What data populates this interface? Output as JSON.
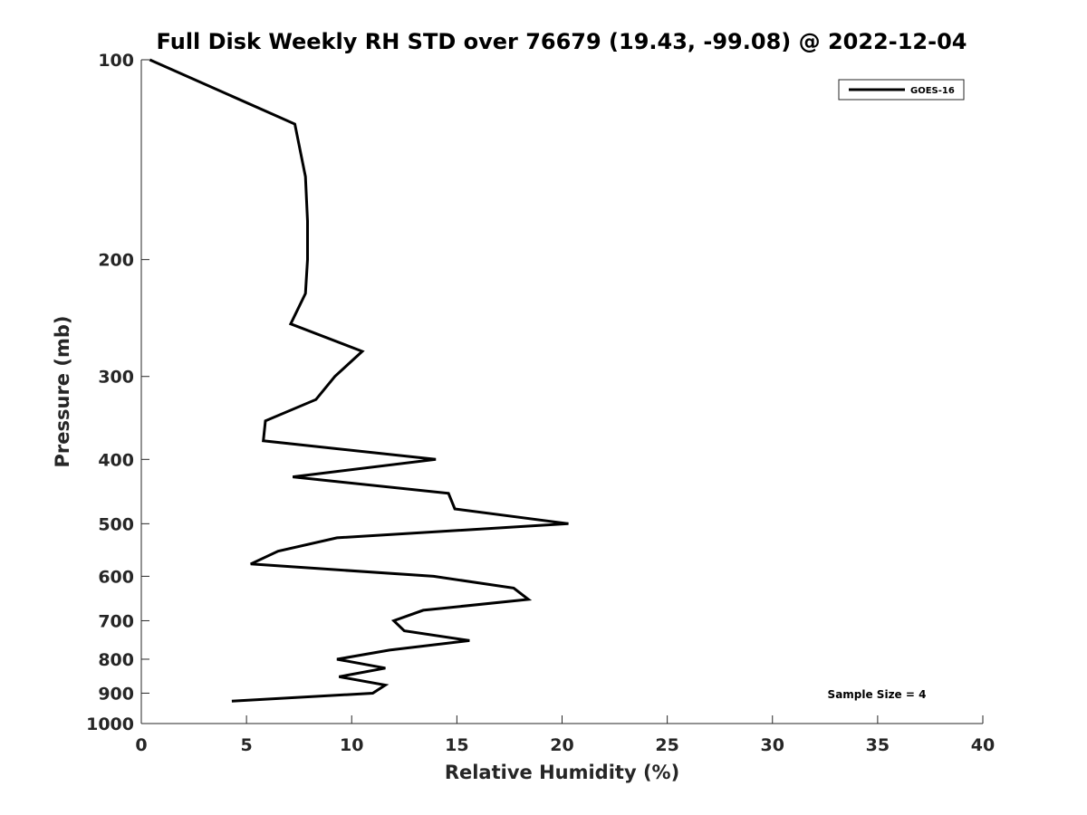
{
  "chart_data": {
    "type": "line",
    "title": "Full Disk Weekly RH STD over 76679 (19.43, -99.08) @ 2022-12-04",
    "xlabel": "Relative Humidity (%)",
    "ylabel": "Pressure (mb)",
    "xlim": [
      0,
      40
    ],
    "ylim": [
      1000,
      100
    ],
    "yscale": "log-reversed",
    "x_ticks": [
      0,
      5,
      10,
      15,
      20,
      25,
      30,
      35,
      40
    ],
    "x_tick_labels": [
      "0",
      "5",
      "10",
      "15",
      "20",
      "25",
      "30",
      "35",
      "40"
    ],
    "y_ticks": [
      100,
      200,
      300,
      400,
      500,
      600,
      700,
      800,
      900,
      1000
    ],
    "y_tick_labels": [
      "100",
      "200",
      "300",
      "400",
      "500",
      "600",
      "700",
      "800",
      "900",
      "1000"
    ],
    "grid": false,
    "legend_position": "top-right",
    "annotation": "Sample Size = 4",
    "series": [
      {
        "name": "GOES-16",
        "color": "#000000",
        "points": [
          {
            "p": 100,
            "rh": 0.4
          },
          {
            "p": 125,
            "rh": 7.3
          },
          {
            "p": 150,
            "rh": 7.8
          },
          {
            "p": 175,
            "rh": 7.9
          },
          {
            "p": 200,
            "rh": 7.9
          },
          {
            "p": 225,
            "rh": 7.8
          },
          {
            "p": 250,
            "rh": 7.1
          },
          {
            "p": 275,
            "rh": 10.5
          },
          {
            "p": 300,
            "rh": 9.2
          },
          {
            "p": 325,
            "rh": 8.3
          },
          {
            "p": 350,
            "rh": 5.9
          },
          {
            "p": 375,
            "rh": 5.8
          },
          {
            "p": 400,
            "rh": 14.0
          },
          {
            "p": 425,
            "rh": 7.2
          },
          {
            "p": 450,
            "rh": 14.6
          },
          {
            "p": 475,
            "rh": 14.9
          },
          {
            "p": 500,
            "rh": 20.3
          },
          {
            "p": 525,
            "rh": 9.3
          },
          {
            "p": 550,
            "rh": 6.5
          },
          {
            "p": 575,
            "rh": 5.2
          },
          {
            "p": 600,
            "rh": 13.9
          },
          {
            "p": 625,
            "rh": 17.7
          },
          {
            "p": 650,
            "rh": 18.4
          },
          {
            "p": 675,
            "rh": 13.4
          },
          {
            "p": 700,
            "rh": 12.0
          },
          {
            "p": 725,
            "rh": 12.5
          },
          {
            "p": 750,
            "rh": 15.6
          },
          {
            "p": 775,
            "rh": 11.8
          },
          {
            "p": 800,
            "rh": 9.3
          },
          {
            "p": 825,
            "rh": 11.6
          },
          {
            "p": 850,
            "rh": 9.4
          },
          {
            "p": 875,
            "rh": 11.6
          },
          {
            "p": 900,
            "rh": 11.0
          },
          {
            "p": 925,
            "rh": 4.3
          }
        ]
      }
    ]
  }
}
